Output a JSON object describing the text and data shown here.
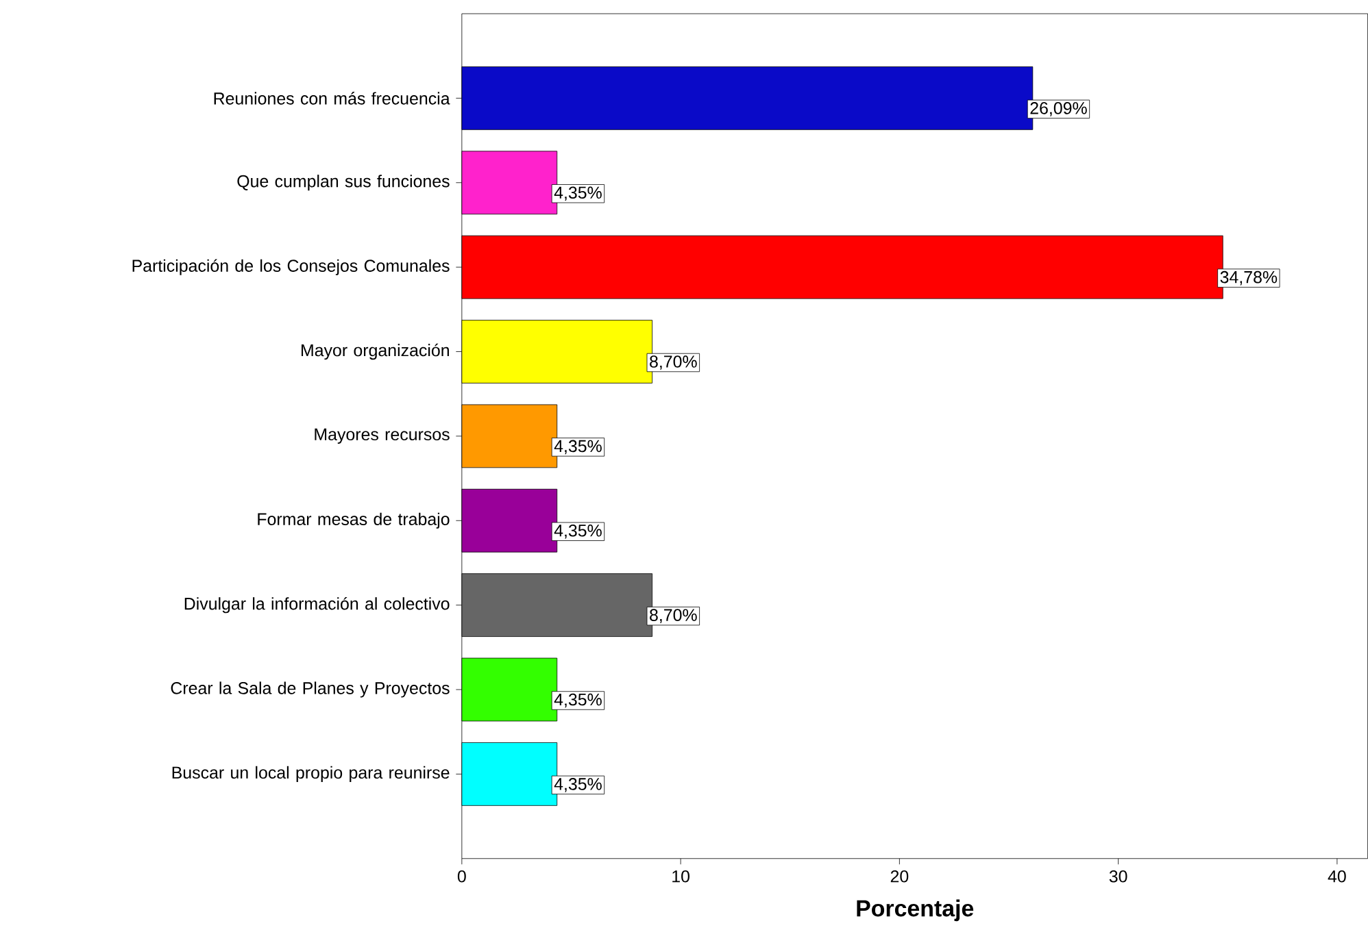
{
  "chart_data": {
    "type": "bar",
    "orientation": "horizontal",
    "xlabel": "Porcentaje",
    "categories": [
      "Reuniones con más frecuencia",
      "Que cumplan sus funciones",
      "Participación de los Consejos Comunales",
      "Mayor organización",
      "Mayores recursos",
      "Formar mesas de trabajo",
      "Divulgar la información al colectivo",
      "Crear la Sala de Planes y Proyectos",
      "Buscar un local propio para reunirse"
    ],
    "values": [
      26.09,
      4.35,
      34.78,
      8.7,
      4.35,
      4.35,
      8.7,
      4.35,
      4.35
    ],
    "value_labels": [
      "26,09%",
      "4,35%",
      "34,78%",
      "8,70%",
      "4,35%",
      "4,35%",
      "8,70%",
      "4,35%",
      "4,35%"
    ],
    "colors": [
      "#0a0ac8",
      "#ff22cc",
      "#ff0000",
      "#ffff00",
      "#ff9900",
      "#990099",
      "#666666",
      "#33ff00",
      "#00ffff"
    ],
    "xlim": [
      0,
      41.4
    ],
    "xticks": [
      0,
      10,
      20,
      30,
      40
    ],
    "grid": false
  }
}
